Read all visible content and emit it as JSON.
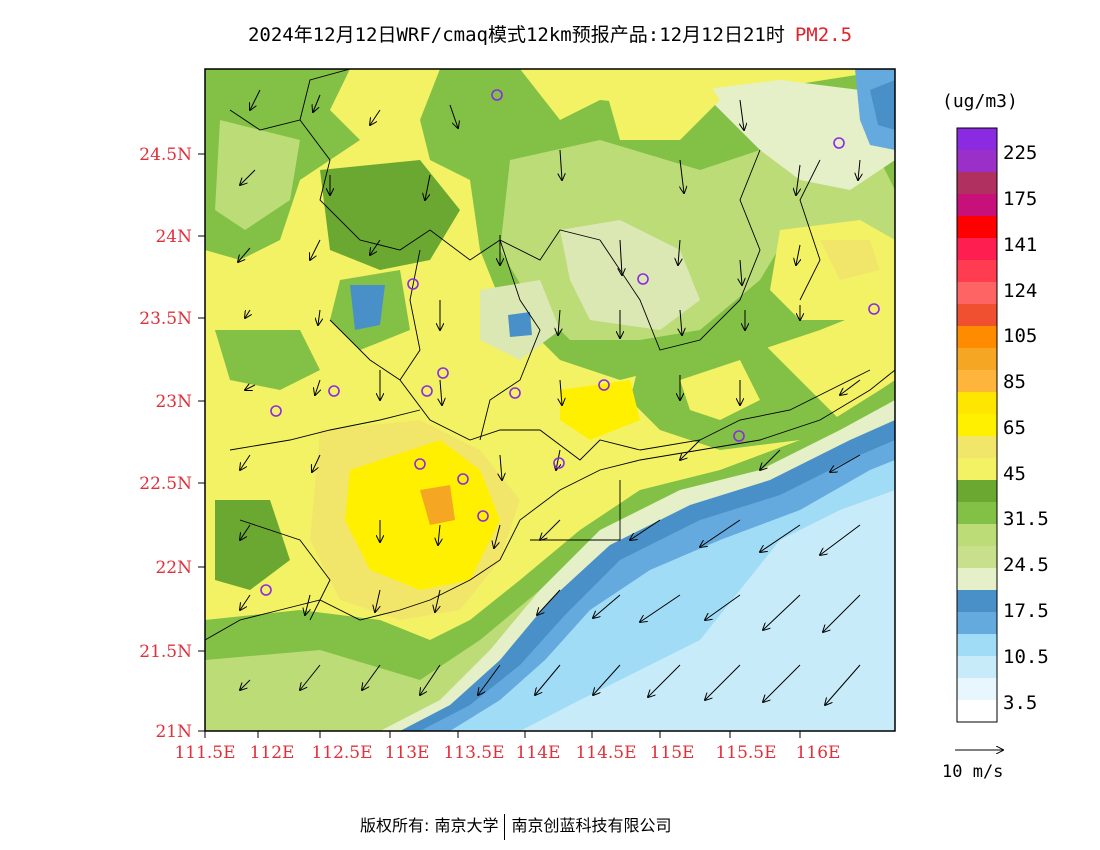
{
  "title": {
    "main": "2024年12月12日WRF/cmaq模式12km预报产品:12月12日21时",
    "pollutant": "PM2.5"
  },
  "axes": {
    "x_ticks": [
      "111.5E",
      "112E",
      "112.5E",
      "113E",
      "113.5E",
      "114E",
      "114.5E",
      "115E",
      "115.5E",
      "116E"
    ],
    "y_ticks": [
      "21N",
      "21.5N",
      "22N",
      "22.5N",
      "23N",
      "23.5N",
      "24N",
      "24.5N"
    ],
    "tick_color": "#e0303a"
  },
  "colorbar": {
    "unit": "(ug/m3)",
    "labels": [
      "225",
      "175",
      "141",
      "124",
      "105",
      "85",
      "65",
      "45",
      "31.5",
      "24.5",
      "17.5",
      "10.5",
      "3.5"
    ],
    "colors_top_to_bottom": [
      "#8a2be2",
      "#9b30c8",
      "#b03060",
      "#c8107a",
      "#ff0000",
      "#ff1e50",
      "#ff3c50",
      "#ff6464",
      "#f05030",
      "#ff8c00",
      "#f5a623",
      "#ffb43c",
      "#ffe600",
      "#fff000",
      "#f2e66a",
      "#f2f264",
      "#6aa832",
      "#82c046",
      "#bcdc78",
      "#c8e08c",
      "#e6f0c8",
      "#4a90c8",
      "#64aade",
      "#a0dcf5",
      "#c8ebfa",
      "#e8f6fd",
      "#ffffff"
    ]
  },
  "wind_reference": {
    "label": "10 m/s"
  },
  "footer": {
    "left": "版权所有: 南京大学",
    "right": "南京创蓝科技有限公司"
  }
}
